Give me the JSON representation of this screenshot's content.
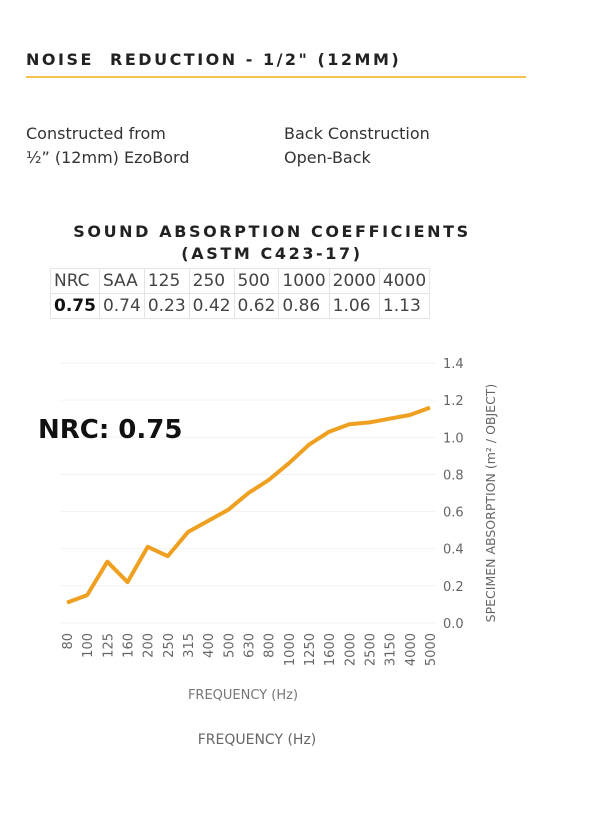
{
  "header": {
    "title": "NOISE  REDUCTION - 1/2\" (12MM)"
  },
  "specs": [
    [
      "Constructed from",
      "½” (12mm) EzoBord"
    ],
    [
      "Back Construction",
      "Open-Back"
    ]
  ],
  "table": {
    "title": [
      "SOUND ABSORPTION COEFFICIENTS",
      "(ASTM C423-17)"
    ],
    "rows": [
      [
        "NRC",
        "SAA",
        "125",
        "250",
        "500",
        "1000",
        "2000",
        "4000"
      ],
      [
        0.75,
        0.74,
        0.23,
        0.42,
        0.62,
        0.86,
        1.06,
        1.13
      ]
    ]
  },
  "chart_data": {
    "type": "line",
    "annotation": "NRC: 0.75",
    "x_label": "FREQUENCY (Hz)",
    "y_label": "SPECIMEN ABSORPTION (m² / OBJECT)",
    "categories": [
      "80",
      "100",
      "125",
      "160",
      "200",
      "250",
      "315",
      "400",
      "500",
      "630",
      "800",
      "1000",
      "1250",
      "1600",
      "2000",
      "2500",
      "3150",
      "4000",
      "5000"
    ],
    "values": [
      0.11,
      0.15,
      0.33,
      0.22,
      0.41,
      0.36,
      0.49,
      0.55,
      0.61,
      0.7,
      0.77,
      0.86,
      0.96,
      1.03,
      1.07,
      1.08,
      1.1,
      1.12,
      1.16
    ],
    "color": "#f0a020",
    "ylim": [
      0,
      1.4
    ],
    "yticks": [
      {
        "value": 0,
        "label": "0.0"
      },
      0.2,
      0.4,
      0.6,
      0.8,
      {
        "value": 1,
        "label": "1.0"
      },
      1.2,
      1.4
    ],
    "grid": true
  }
}
